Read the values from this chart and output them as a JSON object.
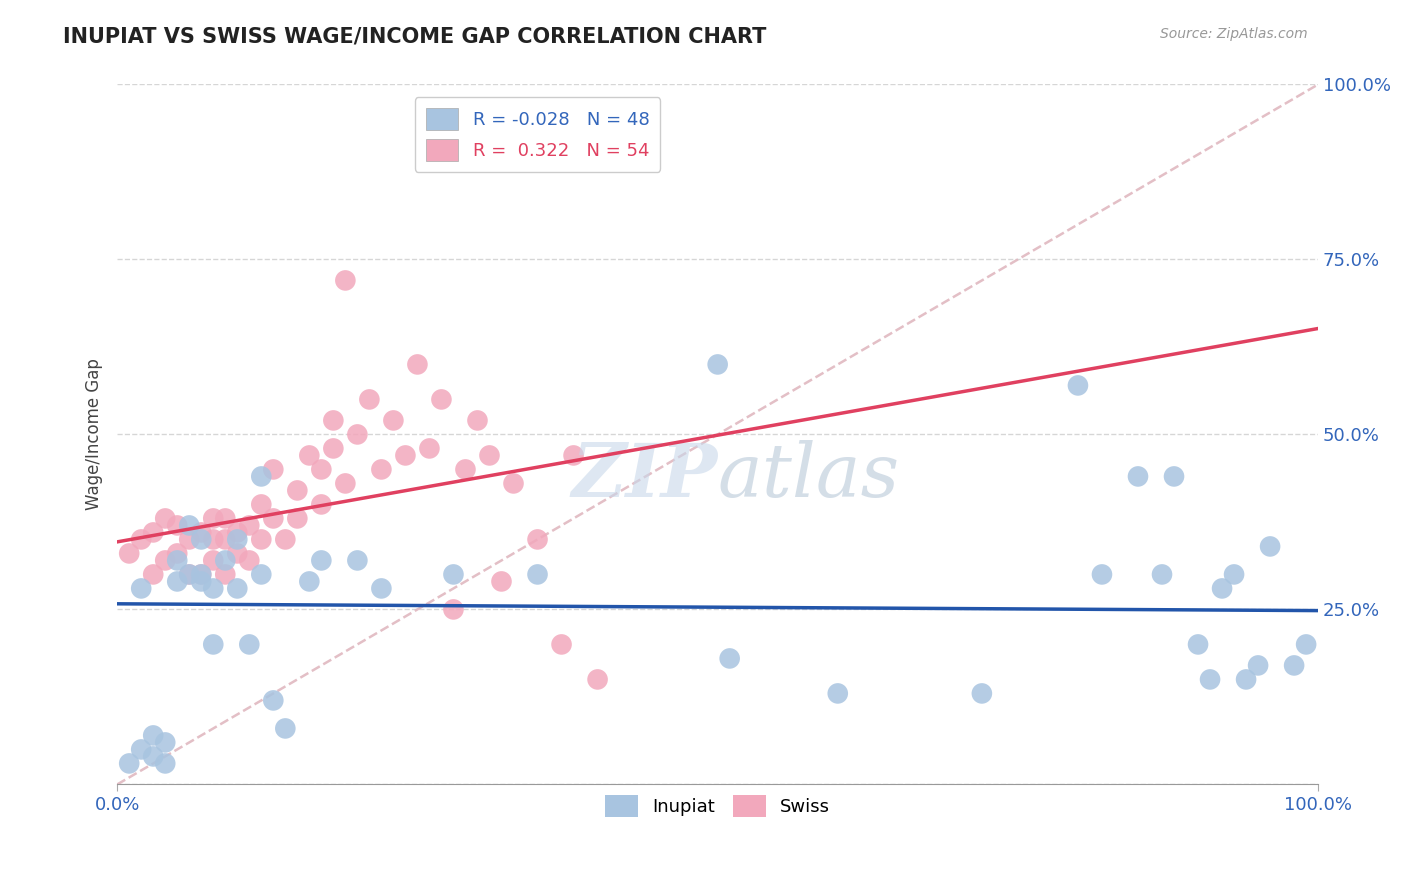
{
  "title": "INUPIAT VS SWISS WAGE/INCOME GAP CORRELATION CHART",
  "source": "Source: ZipAtlas.com",
  "ylabel": "Wage/Income Gap",
  "inupiat_color": "#a8c4e0",
  "swiss_color": "#f2a8bc",
  "inupiat_line_color": "#2255aa",
  "swiss_line_color": "#e04060",
  "diagonal_color": "#e0b8c0",
  "background_color": "#ffffff",
  "grid_color": "#cccccc",
  "inupiat_R": -0.028,
  "inupiat_N": 48,
  "swiss_R": 0.322,
  "swiss_N": 54,
  "inupiat_points_x": [
    0.01,
    0.02,
    0.02,
    0.03,
    0.03,
    0.04,
    0.04,
    0.05,
    0.05,
    0.06,
    0.06,
    0.07,
    0.07,
    0.07,
    0.08,
    0.08,
    0.09,
    0.1,
    0.1,
    0.11,
    0.12,
    0.12,
    0.13,
    0.14,
    0.16,
    0.17,
    0.2,
    0.22,
    0.28,
    0.35,
    0.5,
    0.51,
    0.6,
    0.72,
    0.8,
    0.82,
    0.85,
    0.87,
    0.88,
    0.9,
    0.91,
    0.92,
    0.93,
    0.94,
    0.95,
    0.96,
    0.98,
    0.99
  ],
  "inupiat_points_y": [
    0.03,
    0.05,
    0.28,
    0.04,
    0.07,
    0.03,
    0.06,
    0.29,
    0.32,
    0.3,
    0.37,
    0.3,
    0.29,
    0.35,
    0.2,
    0.28,
    0.32,
    0.28,
    0.35,
    0.2,
    0.3,
    0.44,
    0.12,
    0.08,
    0.29,
    0.32,
    0.32,
    0.28,
    0.3,
    0.3,
    0.6,
    0.18,
    0.13,
    0.13,
    0.57,
    0.3,
    0.44,
    0.3,
    0.44,
    0.2,
    0.15,
    0.28,
    0.3,
    0.15,
    0.17,
    0.34,
    0.17,
    0.2
  ],
  "swiss_points_x": [
    0.01,
    0.02,
    0.03,
    0.03,
    0.04,
    0.04,
    0.05,
    0.05,
    0.06,
    0.06,
    0.07,
    0.07,
    0.08,
    0.08,
    0.08,
    0.09,
    0.09,
    0.09,
    0.1,
    0.1,
    0.11,
    0.11,
    0.12,
    0.12,
    0.13,
    0.13,
    0.14,
    0.15,
    0.15,
    0.16,
    0.17,
    0.17,
    0.18,
    0.18,
    0.19,
    0.2,
    0.21,
    0.22,
    0.23,
    0.24,
    0.25,
    0.26,
    0.27,
    0.28,
    0.29,
    0.3,
    0.31,
    0.32,
    0.33,
    0.35,
    0.37,
    0.38,
    0.4,
    0.19
  ],
  "swiss_points_y": [
    0.33,
    0.35,
    0.3,
    0.36,
    0.32,
    0.38,
    0.33,
    0.37,
    0.3,
    0.35,
    0.3,
    0.36,
    0.32,
    0.38,
    0.35,
    0.3,
    0.35,
    0.38,
    0.33,
    0.36,
    0.32,
    0.37,
    0.35,
    0.4,
    0.38,
    0.45,
    0.35,
    0.38,
    0.42,
    0.47,
    0.4,
    0.45,
    0.48,
    0.52,
    0.43,
    0.5,
    0.55,
    0.45,
    0.52,
    0.47,
    0.6,
    0.48,
    0.55,
    0.25,
    0.45,
    0.52,
    0.47,
    0.29,
    0.43,
    0.35,
    0.2,
    0.47,
    0.15,
    0.72
  ]
}
